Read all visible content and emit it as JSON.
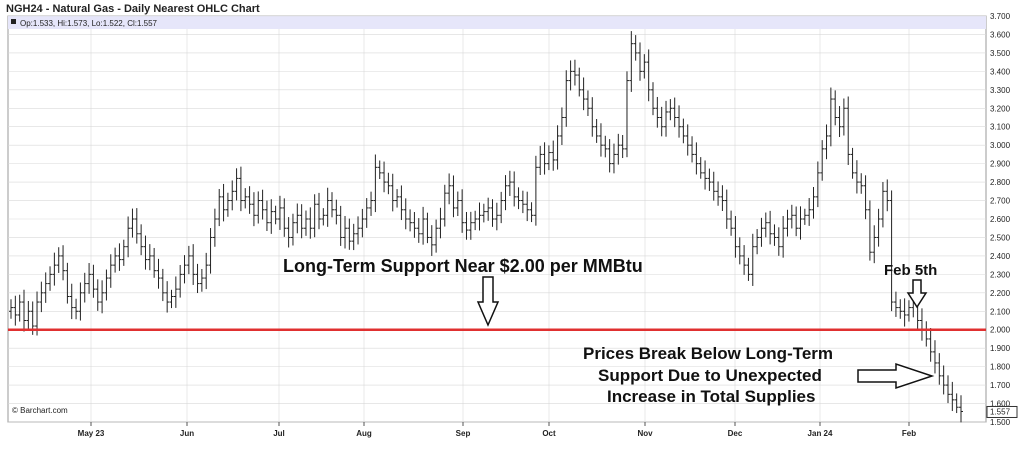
{
  "chart_data": {
    "type": "ohlc",
    "title": "NGH24 - Natural Gas - Daily Nearest OHLC Chart",
    "legend": {
      "text": "Op:1.533, Hi:1.573, Lo:1.522, Cl:1.557"
    },
    "ylim": [
      1.5,
      3.7
    ],
    "y_ticks": [
      "3.700",
      "3.600",
      "3.500",
      "3.400",
      "3.300",
      "3.200",
      "3.100",
      "3.000",
      "2.900",
      "2.800",
      "2.700",
      "2.600",
      "2.500",
      "2.400",
      "2.300",
      "2.200",
      "2.100",
      "2.000",
      "1.900",
      "1.800",
      "1.700",
      "1.600",
      "1.500"
    ],
    "x_ticks": [
      "May 23",
      "Jun",
      "Jul",
      "Aug",
      "Sep",
      "Oct",
      "Nov",
      "Dec",
      "Jan 24",
      "Feb"
    ],
    "last_price_label": "1.557",
    "support_level": 2.0,
    "credit": "© Barchart.com",
    "annotations": {
      "support": "Long-Term Support Near $2.00 per MMBtu",
      "feb5": "Feb 5th",
      "break_line1": "Prices Break Below Long-Term",
      "break_line2": "Support Due to Unexpected",
      "break_line3": "Increase in Total Supplies"
    },
    "colors": {
      "bars": "#222222",
      "support_line": "#e03030",
      "legend_band": "#e6e6fa",
      "grid": "#d9d9d9"
    },
    "closes": [
      2.12,
      2.08,
      2.15,
      2.05,
      2.1,
      2.02,
      2.15,
      2.2,
      2.25,
      2.3,
      2.35,
      2.4,
      2.32,
      2.18,
      2.12,
      2.1,
      2.2,
      2.25,
      2.3,
      2.22,
      2.15,
      2.2,
      2.28,
      2.35,
      2.4,
      2.38,
      2.45,
      2.55,
      2.6,
      2.52,
      2.45,
      2.38,
      2.4,
      2.32,
      2.28,
      2.2,
      2.15,
      2.18,
      2.22,
      2.3,
      2.35,
      2.4,
      2.3,
      2.25,
      2.28,
      2.35,
      2.5,
      2.6,
      2.72,
      2.65,
      2.7,
      2.75,
      2.82,
      2.7,
      2.72,
      2.68,
      2.62,
      2.7,
      2.65,
      2.58,
      2.64,
      2.6,
      2.66,
      2.55,
      2.5,
      2.58,
      2.62,
      2.55,
      2.6,
      2.55,
      2.68,
      2.6,
      2.62,
      2.7,
      2.65,
      2.62,
      2.5,
      2.55,
      2.48,
      2.52,
      2.55,
      2.6,
      2.66,
      2.7,
      2.88,
      2.85,
      2.8,
      2.78,
      2.7,
      2.72,
      2.65,
      2.6,
      2.58,
      2.55,
      2.52,
      2.6,
      2.5,
      2.46,
      2.55,
      2.6,
      2.74,
      2.78,
      2.66,
      2.7,
      2.58,
      2.54,
      2.58,
      2.6,
      2.62,
      2.64,
      2.66,
      2.6,
      2.62,
      2.7,
      2.78,
      2.8,
      2.72,
      2.7,
      2.68,
      2.65,
      2.62,
      2.88,
      2.95,
      2.9,
      2.96,
      2.92,
      3.05,
      3.15,
      3.35,
      3.4,
      3.38,
      3.3,
      3.25,
      3.2,
      3.1,
      3.05,
      3.0,
      2.98,
      2.9,
      2.95,
      3.0,
      2.98,
      3.35,
      3.55,
      3.5,
      3.4,
      3.45,
      3.3,
      3.2,
      3.15,
      3.1,
      3.18,
      3.2,
      3.15,
      3.1,
      3.05,
      3.0,
      2.95,
      2.9,
      2.85,
      2.82,
      2.8,
      2.75,
      2.72,
      2.7,
      2.6,
      2.55,
      2.45,
      2.4,
      2.35,
      2.3,
      2.45,
      2.5,
      2.55,
      2.58,
      2.52,
      2.5,
      2.45,
      2.55,
      2.6,
      2.62,
      2.55,
      2.6,
      2.62,
      2.65,
      2.72,
      2.85,
      2.98,
      3.05,
      3.25,
      3.15,
      3.1,
      3.2,
      2.95,
      2.85,
      2.8,
      2.78,
      2.65,
      2.42,
      2.5,
      2.6,
      2.75,
      2.7,
      2.15,
      2.12,
      2.1,
      2.08,
      2.12,
      2.15,
      2.05,
      2.0,
      1.95,
      1.88,
      1.82,
      1.75,
      1.7,
      1.65,
      1.62,
      1.58,
      1.557
    ]
  }
}
